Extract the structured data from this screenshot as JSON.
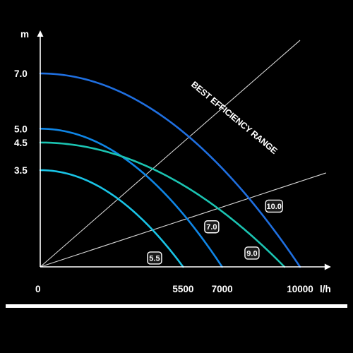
{
  "chart_data": {
    "type": "line",
    "xlabel": "l/h",
    "ylabel": "m",
    "xlim": [
      0,
      11000
    ],
    "ylim": [
      0,
      8.2
    ],
    "grid": false,
    "x_ticks": [
      {
        "value": 0,
        "label": "0"
      },
      {
        "value": 5500,
        "label": "5500"
      },
      {
        "value": 7000,
        "label": "7000"
      },
      {
        "value": 10000,
        "label": "10000"
      }
    ],
    "y_ticks": [
      {
        "value": 7.0,
        "label": "7.0"
      },
      {
        "value": 5.0,
        "label": "5.0"
      },
      {
        "value": 4.5,
        "label": "4.5"
      },
      {
        "value": 3.5,
        "label": "3.5"
      }
    ],
    "series": [
      {
        "name": "5.5",
        "color": "#19c4e6",
        "max_head": 3.5,
        "max_flow": 5500
      },
      {
        "name": "7.0",
        "color": "#0f86e6",
        "max_head": 5.0,
        "max_flow": 7000
      },
      {
        "name": "9.0",
        "color": "#1bc4b2",
        "max_head": 4.5,
        "max_flow": 9400
      },
      {
        "name": "10.0",
        "color": "#1f6fe0",
        "max_head": 7.0,
        "max_flow": 10000
      }
    ],
    "series_labels": [
      {
        "name": "5.5",
        "flow": 4400,
        "head": 0.32
      },
      {
        "name": "7.0",
        "flow": 6600,
        "head": 1.45
      },
      {
        "name": "9.0",
        "flow": 8150,
        "head": 0.5
      },
      {
        "name": "10.0",
        "flow": 9000,
        "head": 2.2
      }
    ],
    "best_efficiency_range": {
      "label": "BEST EFFICIENCY RANGE",
      "bounds": [
        {
          "flow": 10000,
          "head": 8.2
        },
        {
          "flow": 11000,
          "head": 3.4
        }
      ]
    }
  }
}
